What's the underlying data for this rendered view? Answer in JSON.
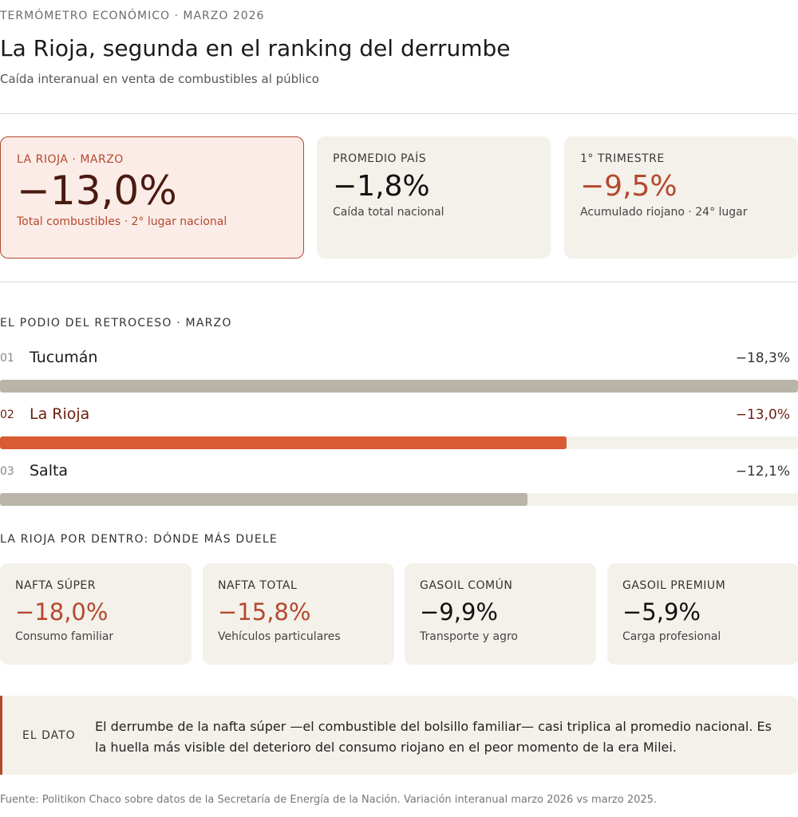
{
  "header": {
    "kicker": "TERMÓMETRO ECONÓMICO · MARZO 2026",
    "title": "La Rioja, segunda en el ranking del derrumbe",
    "subtitle": "Caída interanual en venta de combustibles al público"
  },
  "kpis": [
    {
      "label": "LA RIOJA · MARZO",
      "value": "−13,0%",
      "note": "Total combustibles · 2° lugar nacional"
    },
    {
      "label": "PROMEDIO PAÍS",
      "value": "−1,8%",
      "note": "Caída total nacional"
    },
    {
      "label": "1° TRIMESTRE",
      "value": "−9,5%",
      "note": "Acumulado riojano · 24° lugar"
    }
  ],
  "podium": {
    "section_title": "EL PODIO DEL RETROCESO · MARZO",
    "rows": [
      {
        "rank": "01",
        "name": "Tucumán",
        "value_label": "−18,3%"
      },
      {
        "rank": "02",
        "name": "La Rioja",
        "value_label": "−13,0%"
      },
      {
        "rank": "03",
        "name": "Salta",
        "value_label": "−12,1%"
      }
    ]
  },
  "breakdown": {
    "section_title": "LA RIOJA POR DENTRO: DÓNDE MÁS DUELE",
    "cards": [
      {
        "label": "NAFTA SÚPER",
        "value": "−18,0%",
        "note": "Consumo familiar"
      },
      {
        "label": "NAFTA TOTAL",
        "value": "−15,8%",
        "note": "Vehículos particulares"
      },
      {
        "label": "GASOIL COMÚN",
        "value": "−9,9%",
        "note": "Transporte y agro"
      },
      {
        "label": "GASOIL PREMIUM",
        "value": "−5,9%",
        "note": "Carga profesional"
      }
    ]
  },
  "dato": {
    "label": "EL DATO",
    "text": "El derrumbe de la nafta súper —el combustible del bolsillo familiar— casi triplica al promedio nacional. Es la huella más visible del deterioro del consumo riojano en el peor momento de la era Milei."
  },
  "source": "Fuente: Politikon Chaco sobre datos de la Secretaría de Energía de la Nación. Variación interanual marzo 2026 vs marzo 2025.",
  "colors": {
    "accent": "#b5482e",
    "highlight_bar": "#d95b33",
    "neutral_bar": "#b8b4a8",
    "card_bg": "#f3f1ea"
  },
  "chart_data": {
    "type": "bar",
    "orientation": "horizontal",
    "title": "EL PODIO DEL RETROCESO · MARZO",
    "categories": [
      "Tucumán",
      "La Rioja",
      "Salta"
    ],
    "values": [
      -18.3,
      -13.0,
      -12.1
    ],
    "highlight": "La Rioja",
    "xlim": [
      0,
      -18.3
    ],
    "grid": false,
    "legend": "none"
  }
}
